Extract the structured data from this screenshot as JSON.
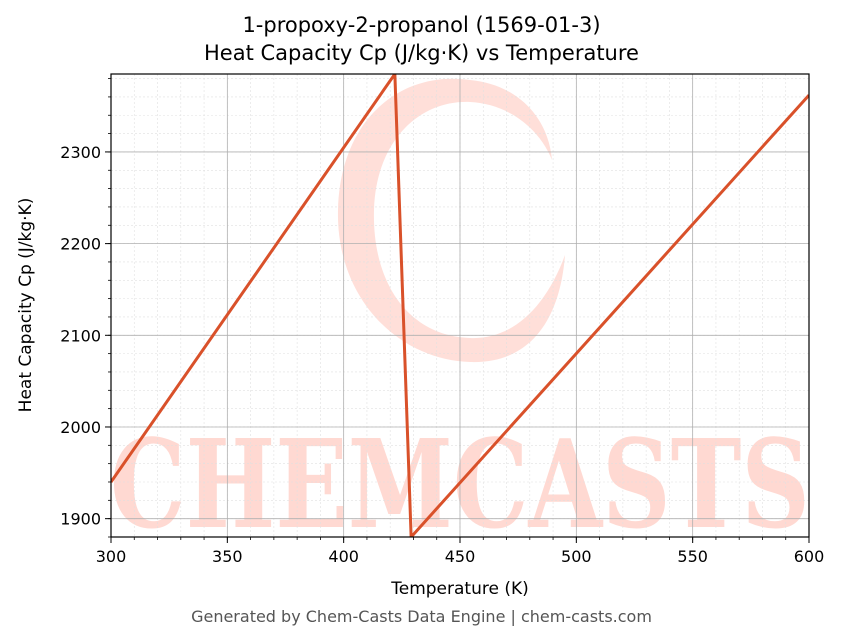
{
  "chart": {
    "title_line1": "1-propoxy-2-propanol (1569-01-3)",
    "title_line2": "Heat Capacity Cp (J/kg·K) vs Temperature",
    "footer": "Generated by Chem-Casts Data Engine | chem-casts.com",
    "watermark": "CHEMCASTS"
  },
  "colors": {
    "line": "#d9512a",
    "watermark": "#ffd9d2",
    "grid_major": "#b0b0b0",
    "grid_minor": "#e0e0e0"
  },
  "chart_data": {
    "type": "line",
    "title": "1-propoxy-2-propanol (1569-01-3) Heat Capacity Cp (J/kg·K) vs Temperature",
    "xlabel": "Temperature (K)",
    "ylabel": "Heat Capacity Cp (J/kg·K)",
    "xlim": [
      300,
      600
    ],
    "ylim": [
      1880,
      2385
    ],
    "xticks": [
      300,
      350,
      400,
      450,
      500,
      550,
      600
    ],
    "yticks": [
      1900,
      2000,
      2100,
      2200,
      2300
    ],
    "grid": true,
    "grid_minor": true,
    "series": [
      {
        "x": [
          300,
          422,
          429,
          600
        ],
        "y": [
          1940,
          2385,
          1880,
          2362
        ]
      }
    ]
  }
}
